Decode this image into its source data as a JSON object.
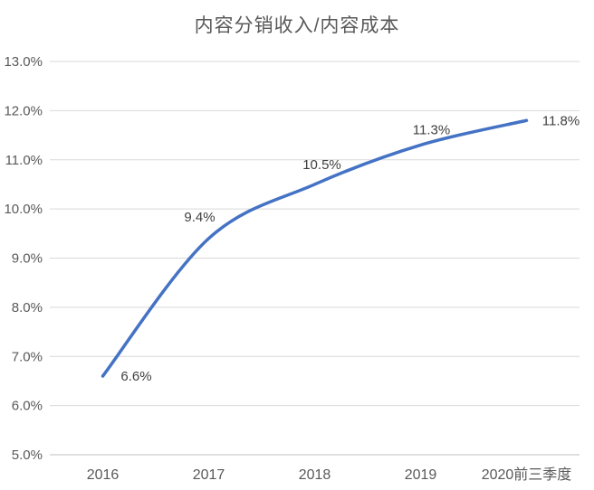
{
  "chart_data": {
    "type": "line",
    "title": "内容分销收入/内容成本",
    "categories": [
      "2016",
      "2017",
      "2018",
      "2019",
      "2020前三季度"
    ],
    "values": [
      6.6,
      9.4,
      10.5,
      11.3,
      11.8
    ],
    "data_labels": [
      "6.6%",
      "9.4%",
      "10.5%",
      "11.3%",
      "11.8%"
    ],
    "xlabel": "",
    "ylabel": "",
    "ylim": [
      5.0,
      13.0
    ],
    "yticks": [
      5,
      6,
      7,
      8,
      9,
      10,
      11,
      12,
      13
    ],
    "ytick_labels": [
      "5.0%",
      "6.0%",
      "7.0%",
      "8.0%",
      "9.0%",
      "10.0%",
      "11.0%",
      "12.0%",
      "13.0%"
    ],
    "grid": true,
    "legend": "none",
    "smooth_line": true,
    "colors": {
      "line": "#4472C4",
      "gridline": "#D9D9D9",
      "axis_line": "#BFBFBF",
      "axis_text": "#595959",
      "data_label_text": "#404040",
      "title_text": "#595959",
      "background": "#FFFFFF"
    }
  }
}
